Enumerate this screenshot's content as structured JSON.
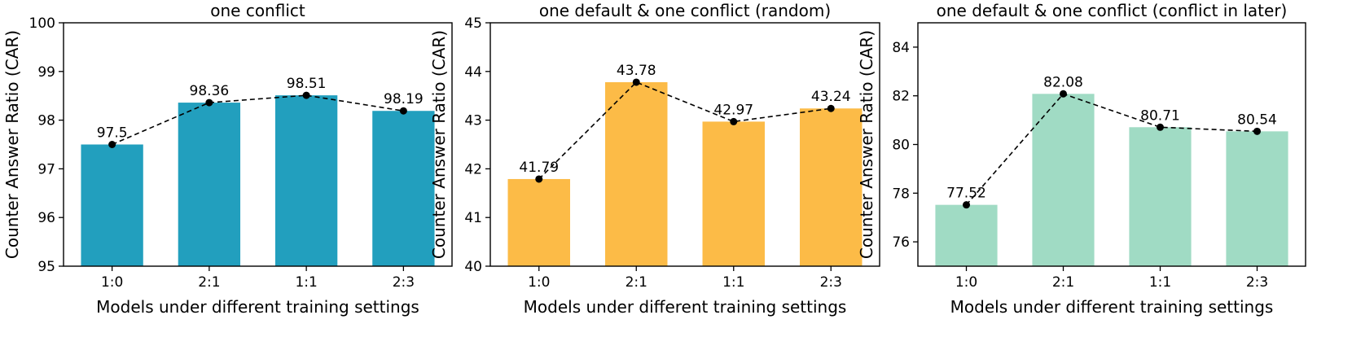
{
  "chart_data": [
    {
      "type": "bar",
      "title": "one conflict",
      "xlabel": "Models under different training settings",
      "ylabel": "Counter Answer Ratio (CAR)",
      "categories": [
        "1:0",
        "2:1",
        "1:1",
        "2:3"
      ],
      "values": [
        97.5,
        98.36,
        98.51,
        98.19
      ],
      "value_labels": [
        "97.5",
        "98.36",
        "98.51",
        "98.19"
      ],
      "ylim": [
        95,
        100
      ],
      "yticks": [
        95,
        96,
        97,
        98,
        99,
        100
      ],
      "ytick_labels": [
        "95",
        "96",
        "97",
        "98",
        "99",
        "100"
      ],
      "bar_color": "#229fbe",
      "line_color": "#000000",
      "line_style": "dashed",
      "markers": true,
      "grid": false,
      "legend": "none"
    },
    {
      "type": "bar",
      "title": "one default & one conflict (random)",
      "xlabel": "Models under different training settings",
      "ylabel": "Counter Answer Ratio (CAR)",
      "categories": [
        "1:0",
        "2:1",
        "1:1",
        "2:3"
      ],
      "values": [
        41.79,
        43.78,
        42.97,
        43.24
      ],
      "value_labels": [
        "41.79",
        "43.78",
        "42.97",
        "43.24"
      ],
      "ylim": [
        40,
        45
      ],
      "yticks": [
        40,
        41,
        42,
        43,
        44,
        45
      ],
      "ytick_labels": [
        "40",
        "41",
        "42",
        "43",
        "44",
        "45"
      ],
      "bar_color": "#fcbb47",
      "line_color": "#000000",
      "line_style": "dashed",
      "markers": true,
      "grid": false,
      "legend": "none"
    },
    {
      "type": "bar",
      "title": "one default & one conflict (conflict in later)",
      "xlabel": "Models under different training settings",
      "ylabel": "Counter Answer Ratio (CAR)",
      "categories": [
        "1:0",
        "2:1",
        "1:1",
        "2:3"
      ],
      "values": [
        77.52,
        82.08,
        80.71,
        80.54
      ],
      "value_labels": [
        "77.52",
        "82.08",
        "80.71",
        "80.54"
      ],
      "ylim": [
        75,
        85
      ],
      "yticks": [
        76,
        78,
        80,
        82,
        84
      ],
      "ytick_labels": [
        "76",
        "78",
        "80",
        "82",
        "84"
      ],
      "bar_color": "#a0dbc4",
      "line_color": "#000000",
      "line_style": "dashed",
      "markers": true,
      "grid": false,
      "legend": "none"
    }
  ]
}
